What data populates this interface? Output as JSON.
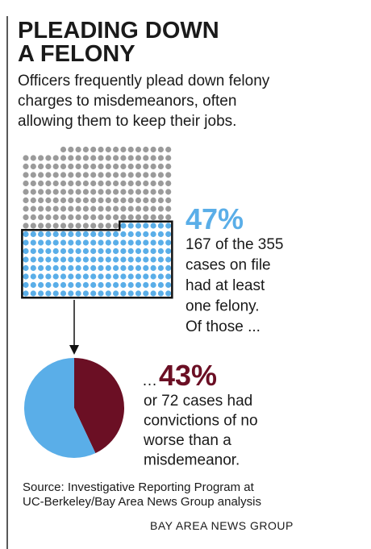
{
  "header": {
    "title_lines": [
      "PLEADING DOWN",
      "A FELONY"
    ],
    "subtitle_lines": [
      "Officers frequently plead down felony",
      "charges to misdemeanors, often",
      "allowing them to keep their jobs."
    ]
  },
  "chart_data": [
    {
      "type": "waffle",
      "total": 355,
      "highlighted": 167,
      "base_color": "#9b9b9b",
      "highlight_color": "#5aaee8",
      "percent_label": "47%",
      "note_lines": [
        "167 of the 355",
        "cases on file",
        "had at least",
        "one felony.",
        "Of those ..."
      ]
    },
    {
      "type": "pie",
      "values": [
        43,
        57
      ],
      "colors": [
        "#6b0f24",
        "#5aaee8"
      ],
      "value_labels": [
        "43%",
        null
      ],
      "lead": "…",
      "note_lines": [
        "or 72 cases had",
        "convictions of no",
        "worse than a",
        "misdemeanor."
      ]
    }
  ],
  "footer": {
    "source_lines": [
      "Source: Investigative Reporting Program at",
      "UC-Berkeley/Bay Area News Group analysis"
    ],
    "credit": "BAY AREA NEWS GROUP"
  }
}
